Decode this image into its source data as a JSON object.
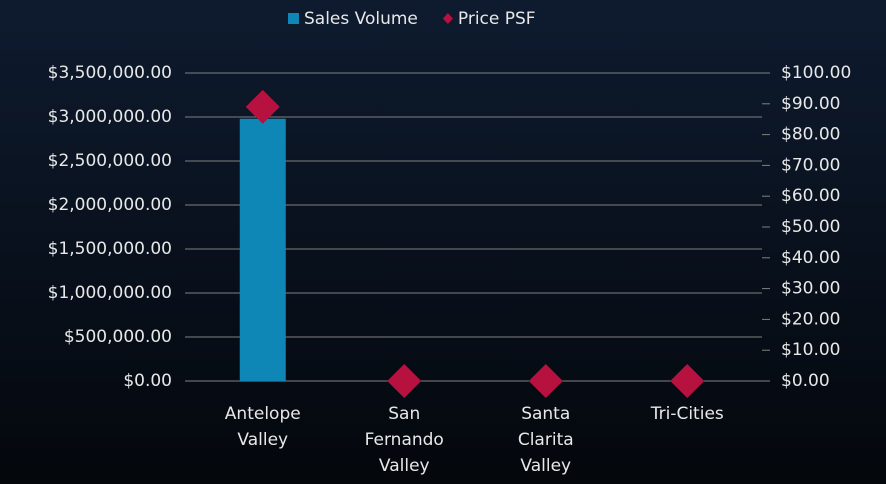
{
  "chart_data": {
    "type": "bar",
    "categories": [
      "Antelope Valley",
      "San Fernando Valley",
      "Santa Clarita Valley",
      "Tri-Cities"
    ],
    "series": [
      {
        "name": "Sales Volume",
        "type": "bar",
        "color": "#0f87b6",
        "values": [
          2980000,
          0,
          0,
          0
        ]
      },
      {
        "name": "Price PSF",
        "type": "scatter",
        "color": "#b7123f",
        "axis": "y2",
        "values": [
          89,
          0,
          0,
          0
        ]
      }
    ],
    "ylim": [
      0,
      3500000
    ],
    "yticks": [
      {
        "value": 0,
        "label": "$0.00"
      },
      {
        "value": 500000,
        "label": "$500,000.00"
      },
      {
        "value": 1000000,
        "label": "$1,000,000.00"
      },
      {
        "value": 1500000,
        "label": "$1,500,000.00"
      },
      {
        "value": 2000000,
        "label": "$2,000,000.00"
      },
      {
        "value": 2500000,
        "label": "$2,500,000.00"
      },
      {
        "value": 3000000,
        "label": "$3,000,000.00"
      },
      {
        "value": 3500000,
        "label": "$3,500,000.00"
      }
    ],
    "y2lim": [
      0,
      100
    ],
    "y2ticks": [
      {
        "value": 0,
        "label": "$0.00"
      },
      {
        "value": 10,
        "label": "$10.00"
      },
      {
        "value": 20,
        "label": "$20.00"
      },
      {
        "value": 30,
        "label": "$30.00"
      },
      {
        "value": 40,
        "label": "$40.00"
      },
      {
        "value": 50,
        "label": "$50.00"
      },
      {
        "value": 60,
        "label": "$60.00"
      },
      {
        "value": 70,
        "label": "$70.00"
      },
      {
        "value": 80,
        "label": "$80.00"
      },
      {
        "value": 90,
        "label": "$90.00"
      },
      {
        "value": 100,
        "label": "$100.00"
      }
    ],
    "grid": true,
    "legend": "top"
  }
}
